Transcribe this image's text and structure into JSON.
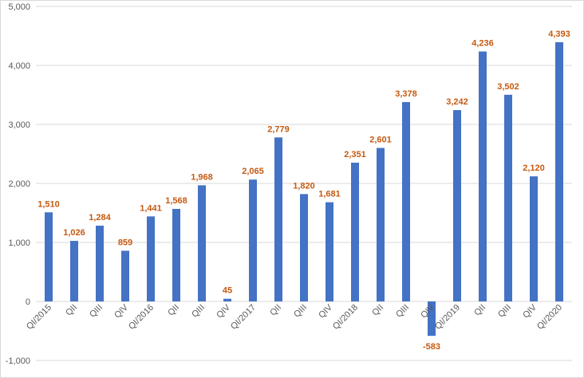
{
  "colors": {
    "bar": "#4472C4",
    "label": "#C55A11",
    "grid": "#d9d9d9",
    "axis_text": "#595959"
  },
  "chart_data": {
    "type": "bar",
    "title": "",
    "xlabel": "",
    "ylabel": "",
    "ylim": [
      -1000,
      5000
    ],
    "grid": true,
    "y_ticks": [
      -1000,
      0,
      1000,
      2000,
      3000,
      4000,
      5000
    ],
    "y_tick_labels": [
      "-1,000",
      "0",
      "1,000",
      "2,000",
      "3,000",
      "4,000",
      "5,000"
    ],
    "categories": [
      "QI/2015",
      "QII",
      "QIII",
      "QIV",
      "QI/2016",
      "QII",
      "QIII",
      "QIV",
      "QI/2017",
      "QII",
      "QIII",
      "QIV",
      "QI/2018",
      "QII",
      "QIII",
      "QIV",
      "QI/2019",
      "QII",
      "QIII",
      "QIV",
      "QI/2020"
    ],
    "values": [
      1510,
      1026,
      1284,
      859,
      1441,
      1568,
      1968,
      45,
      2065,
      2779,
      1820,
      1681,
      2351,
      2601,
      3378,
      -583,
      3242,
      4236,
      3502,
      2120,
      4393
    ],
    "value_labels": [
      "1,510",
      "1,026",
      "1,284",
      "859",
      "1,441",
      "1,568",
      "1,968",
      "45",
      "2,065",
      "2,779",
      "1,820",
      "1,681",
      "2,351",
      "2,601",
      "3,378",
      "-583",
      "3,242",
      "4,236",
      "3,502",
      "2,120",
      "4,393"
    ]
  }
}
